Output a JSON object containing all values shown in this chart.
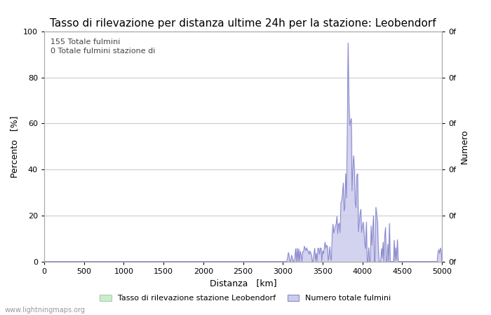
{
  "title": "Tasso di rilevazione per distanza ultime 24h per la stazione: Leobendorf",
  "xlabel": "Distanza   [km]",
  "ylabel_left": "Percento   [%]",
  "ylabel_right": "Numero",
  "xlim": [
    0,
    5000
  ],
  "ylim": [
    0,
    100
  ],
  "xticks": [
    0,
    500,
    1000,
    1500,
    2000,
    2500,
    3000,
    3500,
    4000,
    4500,
    5000
  ],
  "yticks_left": [
    0,
    20,
    40,
    60,
    80,
    100
  ],
  "yticks_right": [
    0,
    20,
    40,
    60,
    80,
    100
  ],
  "right_tick_labels": [
    "0f",
    "0f",
    "0f",
    "0f",
    "0f",
    "0f"
  ],
  "annotation_text": "155 Totale fulmini\n0 Totale fulmini stazione di",
  "legend_label_green": "Tasso di rilevazione stazione Leobendorf",
  "legend_label_blue": "Numero totale fulmini",
  "watermark": "www.lightningmaps.org",
  "line_color": "#8888cc",
  "fill_color": "#ccccee",
  "background_color": "#ffffff",
  "grid_color": "#cccccc",
  "title_fontsize": 11,
  "axis_label_fontsize": 9,
  "tick_fontsize": 8,
  "annotation_fontsize": 8
}
